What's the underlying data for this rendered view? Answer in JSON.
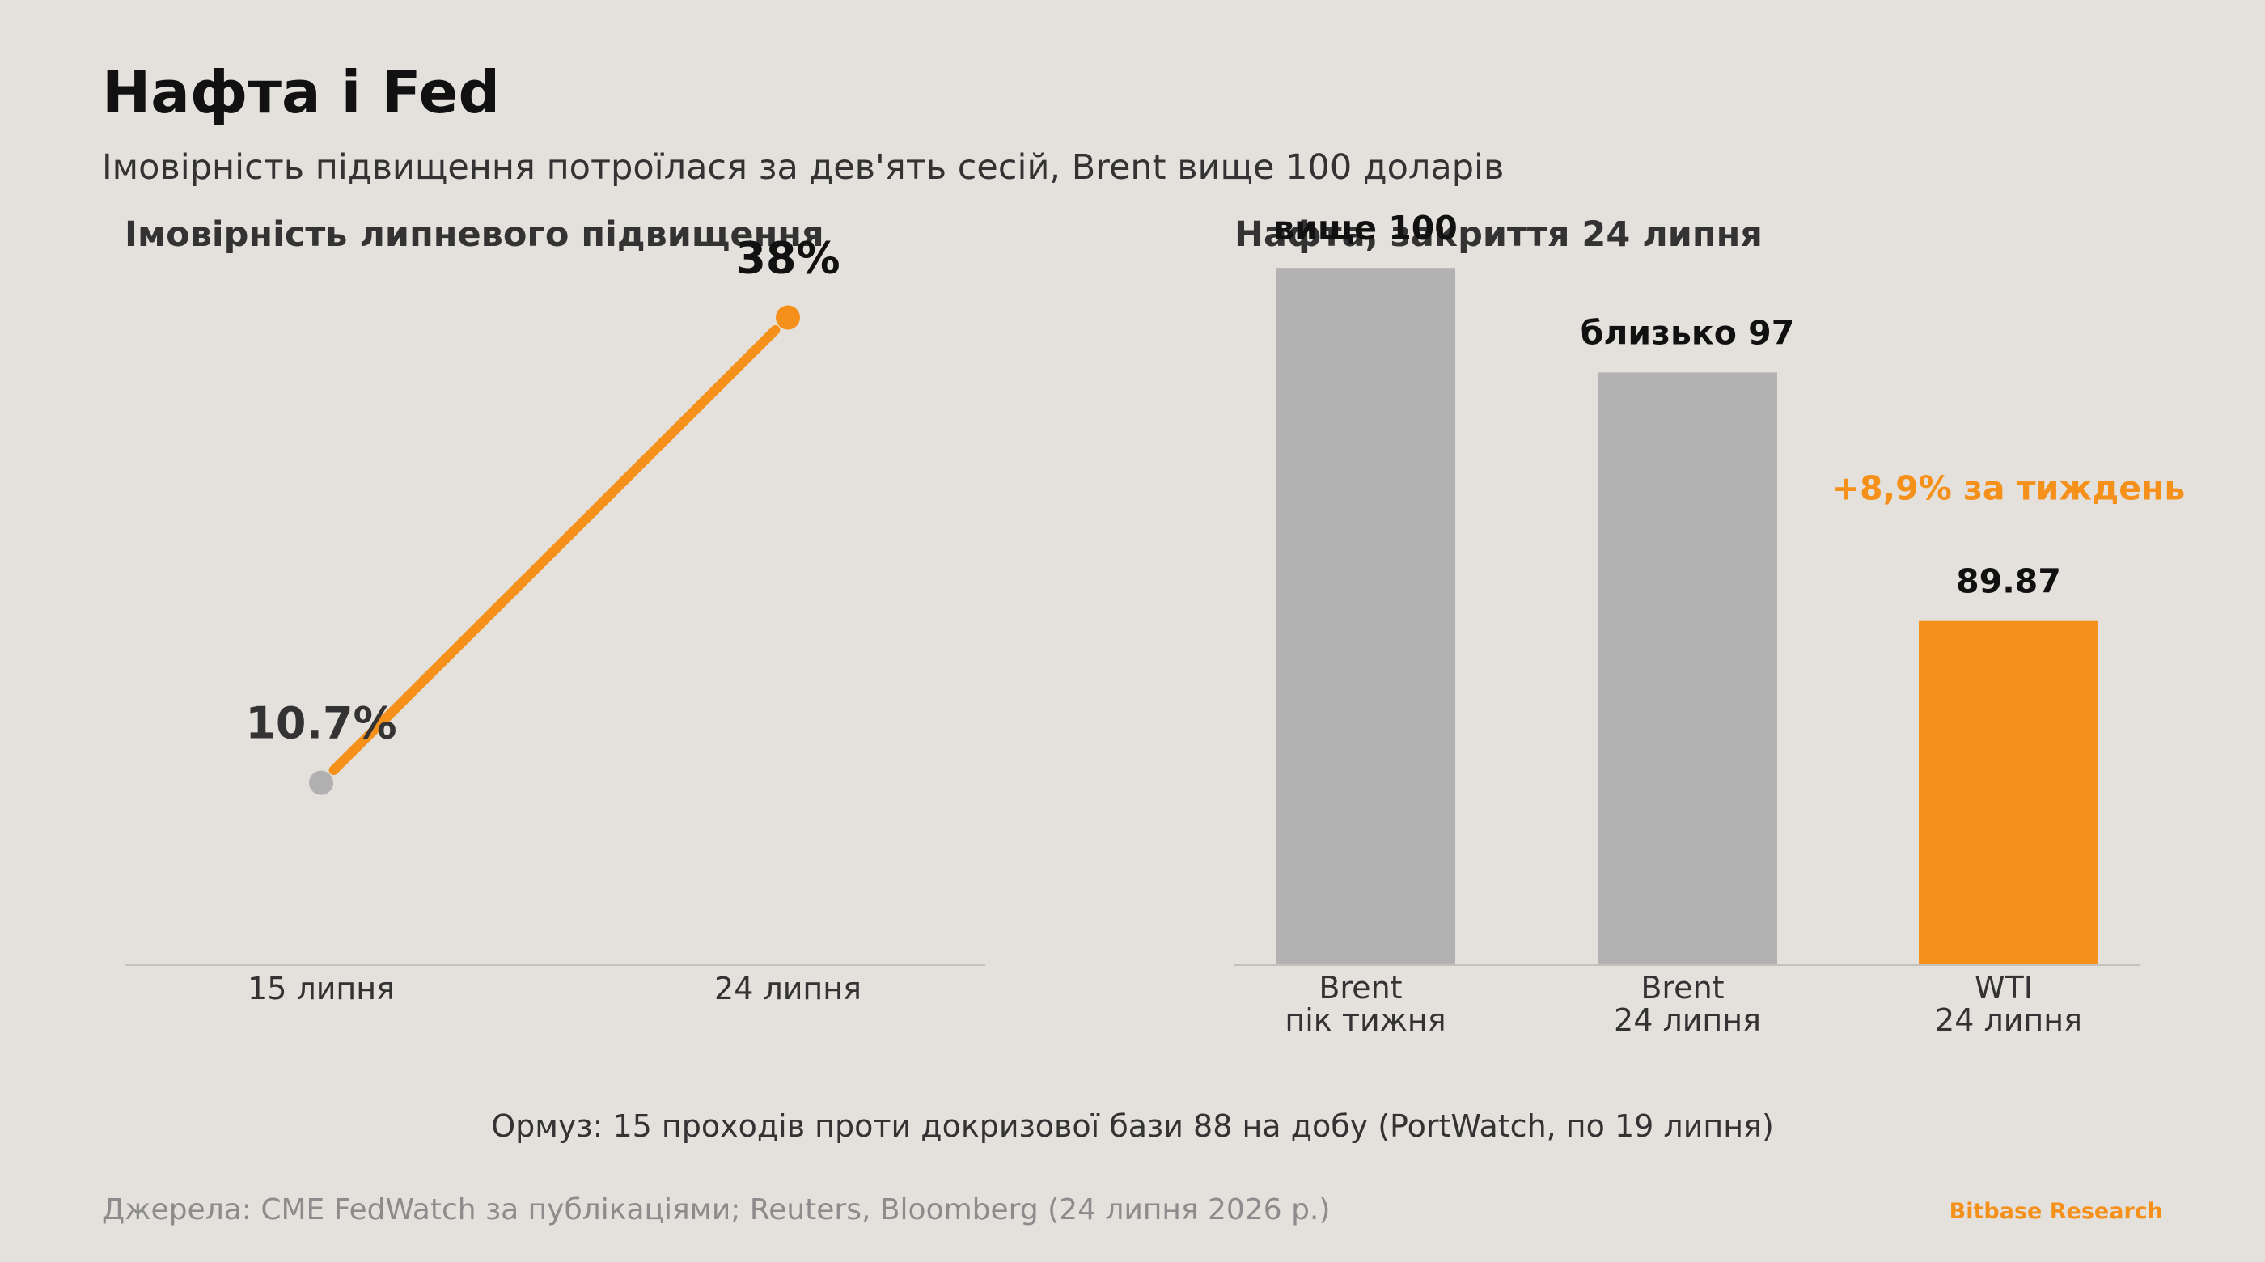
{
  "header": {
    "title": "Нафта і Fed",
    "subtitle": "Імовірність підвищення потроїлася за дев'ять сесій, Brent вище 100 доларів"
  },
  "chart_data": [
    {
      "type": "line",
      "title": "Імовірність липневого підвищення",
      "categories": [
        "15 липня",
        "24 липня"
      ],
      "values": [
        10.7,
        38
      ],
      "value_labels": [
        "10.7%",
        "38%"
      ],
      "unit": "%",
      "ylim": [
        0,
        45
      ],
      "grid": false,
      "colors": {
        "line": "#f5901a",
        "start_point": "#b0b0b0",
        "end_point": "#f5901a"
      }
    },
    {
      "type": "bar",
      "title": "Нафта, закриття 24 липня",
      "categories": [
        [
          "Brent",
          "пік тижня"
        ],
        [
          "Brent",
          "24 липня"
        ],
        [
          "WTI",
          "24 липня"
        ]
      ],
      "values": [
        100,
        97,
        89.87
      ],
      "value_labels": [
        "вище 100",
        "близько 97",
        "89.87"
      ],
      "ylim": [
        80,
        102
      ],
      "grid": false,
      "colors": [
        "#b2b2b2",
        "#b2b2b2",
        "#f5901a"
      ],
      "annotation": {
        "text": "+8,9% за тиждень",
        "bar_index": 2,
        "color": "#f5901a"
      }
    }
  ],
  "footer": {
    "note": "Ормуз: 15 проходів проти докризової бази 88 на добу (PortWatch, по 19 липня)",
    "source": "Джерела: CME FedWatch за публікаціями; Reuters, Bloomberg (24 липня 2026 р.)",
    "brand": "Bitbase Research",
    "brand_color": "#f5901a"
  }
}
